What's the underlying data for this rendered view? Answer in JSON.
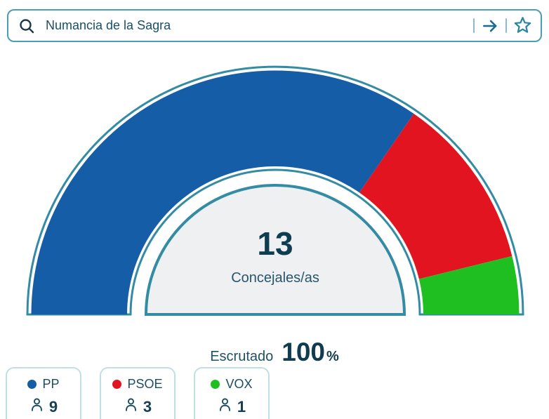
{
  "search": {
    "value": "Numancia de la Sagra",
    "icons": {
      "left": "search-icon",
      "submit": "arrow-right-icon",
      "favorite": "star-outline-icon"
    }
  },
  "chart_data": {
    "type": "hemicycle-donut",
    "title": "",
    "total_seats": 13,
    "center_label": "Concejales/as",
    "start_angle_deg": 180,
    "end_angle_deg": 0,
    "legend_position": "bottom-left",
    "series": [
      {
        "name": "PP",
        "seats": 9,
        "color": "#155da6"
      },
      {
        "name": "PSOE",
        "seats": 3,
        "color": "#e11420"
      },
      {
        "name": "VOX",
        "seats": 1,
        "color": "#1fbf22"
      }
    ]
  },
  "scrutiny": {
    "label": "Escrutado",
    "value": "100",
    "unit": "%"
  },
  "colors": {
    "chart_outline": "#338ba4",
    "inner_semicircle_fill": "#eef0f2",
    "search_border": "#4a9fb4",
    "dark_text": "#12414f",
    "card_border": "#bfdfe9"
  }
}
